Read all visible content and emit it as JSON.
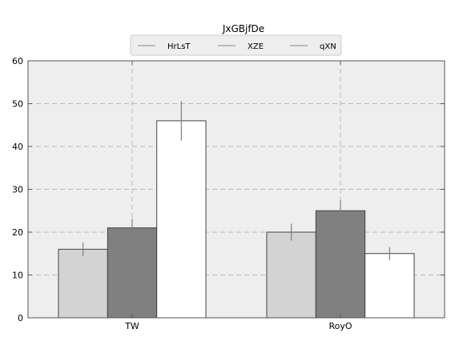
{
  "chart_data": {
    "type": "bar",
    "title": "JxGBjfDe",
    "xlabel": "",
    "ylabel": "",
    "categories": [
      "TW",
      "RoyO"
    ],
    "series": [
      {
        "name": "HrLsT",
        "values": [
          16,
          20
        ],
        "errors": [
          1.6,
          2.0
        ],
        "color": "#d3d3d3"
      },
      {
        "name": "XZE",
        "values": [
          21,
          25
        ],
        "errors": [
          2.1,
          2.5
        ],
        "color": "#808080"
      },
      {
        "name": "qXN",
        "values": [
          46,
          15
        ],
        "errors": [
          4.6,
          1.5
        ],
        "color": "#ffffff"
      }
    ],
    "ylim": [
      0,
      60
    ],
    "yticks": [
      0,
      10,
      20,
      30,
      40,
      50,
      60
    ],
    "grid": true,
    "legend_position": "top-center",
    "plot_background": "#eeeeee",
    "error_bar_color": "#808080"
  }
}
